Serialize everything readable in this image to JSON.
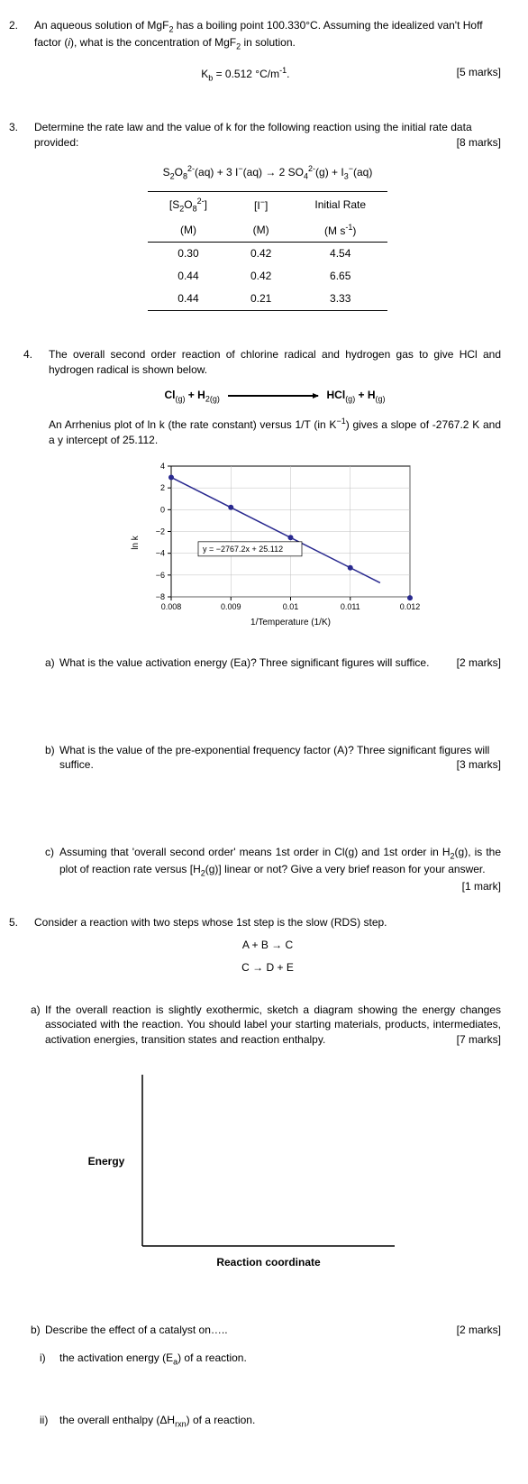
{
  "q2": {
    "num": "2.",
    "text_a": "An aqueous solution of MgF",
    "text_b": " has a boiling point 100.330°C. Assuming the idealized van't Hoff factor (",
    "text_c": "), what is the concentration of MgF",
    "text_d": " in solution.",
    "i": "i",
    "sub2": "2",
    "kb_label_a": "K",
    "kb_label_b": " = 0.512 °C/m",
    "kb_sup": "-1",
    "kb_end": ".",
    "kb_sub": "b",
    "marks": "[5 marks]"
  },
  "q3": {
    "num": "3.",
    "text": "Determine the rate law and the value of k for the following reaction using the initial rate data provided:",
    "marks": "[8 marks]",
    "eqn_a": "S",
    "eqn_b": "O",
    "eqn_c": "(aq) + 3 I",
    "eqn_d": "(aq) → 2 SO",
    "eqn_e": "(g) + I",
    "eqn_f": "(aq)",
    "s2": "2",
    "s8": "8",
    "sup2m": "2-",
    "supm": "−",
    "s4": "4",
    "s3": "3",
    "table": {
      "h1a": "[S",
      "h1b": "O",
      "h1c": "]",
      "h2a": "[I",
      "h2b": "]",
      "h3": "Initial Rate",
      "u1": "(M)",
      "u2": "(M)",
      "u3": "(M s",
      "u3sup": "-1",
      "u3end": ")",
      "rows": [
        {
          "c1": "0.30",
          "c2": "0.42",
          "c3": "4.54"
        },
        {
          "c1": "0.44",
          "c2": "0.42",
          "c3": "6.65"
        },
        {
          "c1": "0.44",
          "c2": "0.21",
          "c3": "3.33"
        }
      ]
    }
  },
  "q4": {
    "num": "4.",
    "intro": "The overall second order reaction of chlorine radical and hydrogen gas to give HCl and hydrogen radical is shown below.",
    "r_cl": "Cl",
    "r_g": "(g)",
    "r_plus": " + ",
    "r_h2": "H",
    "r_2g": "2(g)",
    "r_hcl": "HCl",
    "r_h": "H",
    "arr_a": "An Arrhenius plot of ln k (the rate constant) versus 1/T (in K",
    "arr_b": ") gives a slope of -2767.2 K and a y intercept of 25.112.",
    "arr_sup": "−1",
    "chart": {
      "ylabel": "ln k",
      "xlabel": "1/Temperature (1/K)",
      "yticks": [
        "4",
        "2",
        "0",
        "−2",
        "−4",
        "−6",
        "−8"
      ],
      "xticks": [
        "0.008",
        "0.009",
        "0.01",
        "0.011",
        "0.012"
      ],
      "eqn": "y = −2767.2x + 25.112",
      "line_color": "#29298f",
      "dot_color": "#29298f",
      "grid_color": "#bfbfbf",
      "points": [
        [
          0.008,
          2.97
        ],
        [
          0.009,
          0.21
        ],
        [
          0.01,
          -2.56
        ],
        [
          0.011,
          -5.33
        ],
        [
          0.012,
          -8.09
        ]
      ]
    },
    "a": {
      "letter": "a)",
      "text": "What is the value activation energy (Ea)? Three significant figures will suffice.",
      "marks": "[2 marks]"
    },
    "b": {
      "letter": "b)",
      "text": "What is the value of the pre-exponential frequency factor (A)? Three significant figures will suffice.",
      "marks": "[3 marks]"
    },
    "c": {
      "letter": "c)",
      "text_a": "Assuming that 'overall second order' means 1st order in Cl(g) and 1st order in H",
      "text_b": "(g), is the plot of reaction rate versus [H",
      "text_c": "(g)] linear or not?  Give a very brief reason for your answer.",
      "marks": "[1 mark]"
    }
  },
  "q5": {
    "num": "5.",
    "intro": "Consider a reaction with two steps whose 1st step is the slow (RDS) step.",
    "step1": "A + B → C",
    "step2": "C → D + E",
    "a": {
      "letter": "a)",
      "text": "If the overall reaction is slightly exothermic, sketch a diagram showing the energy changes associated with the reaction. You should label your starting materials, products, intermediates, activation energies, transition states and reaction enthalpy.",
      "marks": "[7 marks]"
    },
    "diag": {
      "ylabel": "Energy",
      "xlabel": "Reaction coordinate"
    },
    "b": {
      "letter": "b)",
      "text": "Describe the effect of a catalyst on…..",
      "marks": "[2 marks]"
    },
    "bi": {
      "roman": "i)",
      "text_a": "the activation energy (E",
      "text_b": ") of a reaction.",
      "sub": "a"
    },
    "bii": {
      "roman": "ii)",
      "text_a": "the overall enthalpy (ΔH",
      "text_b": ") of a reaction.",
      "sub": "rxn"
    }
  }
}
